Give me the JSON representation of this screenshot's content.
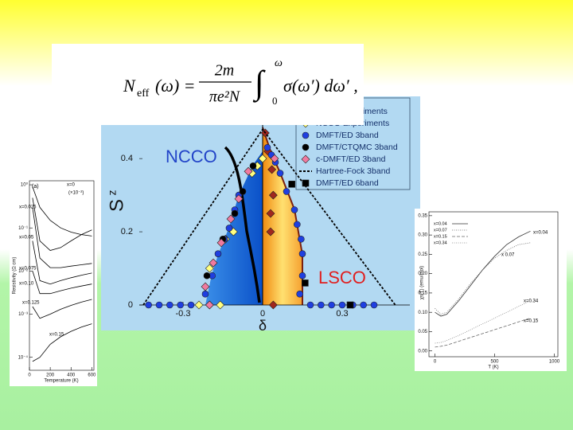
{
  "formula": {
    "lhs": "N",
    "lhs_sub": "eff",
    "lhs_arg": "(ω) =",
    "numerator": "2m",
    "denominator": "πe²N",
    "integral": "∫",
    "lower": "0",
    "upper": "ω",
    "integrand": "σ(ω′) dω′ ,"
  },
  "chart_data": [
    {
      "type": "scatter",
      "xlabel": "δ",
      "ylabel": "S",
      "ylabel_sup": "z",
      "xlim": [
        -0.465,
        0.555
      ],
      "ylim": [
        0,
        0.57
      ],
      "xticks": [
        -0.3,
        0,
        0.3
      ],
      "yticks": [
        0,
        0.2,
        0.4
      ],
      "annotations": [
        "NCCO",
        "LSCO"
      ],
      "legend": "upper right",
      "series": [
        {
          "name": "LSCO Experiments",
          "marker": "diamond",
          "color": "#a0281e",
          "x": [
            0.01,
            0.02,
            0.035,
            0.04,
            0.03,
            0.03,
            0.04
          ],
          "y": [
            0.47,
            0.42,
            0.37,
            0.3,
            0.25,
            0.2,
            0
          ]
        },
        {
          "name": "NCCO Experiments",
          "marker": "diamond",
          "color": "#ffff80",
          "x": [
            -0.04,
            -0.02,
            0,
            -0.11,
            -0.14,
            -0.2,
            -0.24,
            -0.2,
            -0.16
          ],
          "y": [
            0.36,
            0.38,
            0.4,
            0.2,
            0.18,
            0.1,
            0,
            0,
            0
          ]
        },
        {
          "name": "DMFT/ED 3band",
          "marker": "circle",
          "color": "#1f3fe0",
          "x": [
            0.018,
            0.033,
            0.048,
            0.066,
            0.09,
            0.12,
            0.13,
            0.145,
            0.15,
            0.15,
            0.14,
            0.18,
            0.22,
            0.26,
            0.3,
            0.34,
            0.38,
            0.42,
            -0.09,
            -0.105,
            -0.126,
            -0.144,
            -0.168,
            -0.19,
            -0.216,
            -0.43,
            -0.39,
            -0.35,
            -0.31,
            -0.27
          ],
          "y": [
            0.43,
            0.41,
            0.39,
            0.36,
            0.31,
            0.26,
            0.22,
            0.18,
            0.14,
            0.08,
            0.03,
            0,
            0,
            0,
            0,
            0,
            0,
            0,
            0.3,
            0.26,
            0.21,
            0.18,
            0.14,
            0.08,
            0.03,
            0,
            0,
            0,
            0,
            0
          ]
        },
        {
          "name": "DMFT/CTQMC 3band",
          "marker": "circle",
          "color": "#000000",
          "x": [
            -0.036,
            -0.075,
            -0.105,
            -0.15,
            -0.21
          ],
          "y": [
            0.38,
            0.31,
            0.25,
            0.18,
            0.08
          ]
        },
        {
          "name": "c-DMFT/ED 3band",
          "marker": "diamond",
          "color": "#f07aa0",
          "x": [
            -0.054,
            -0.09,
            -0.12,
            -0.156,
            -0.186,
            -0.216,
            -0.2,
            0.045
          ],
          "y": [
            0.365,
            0.29,
            0.235,
            0.17,
            0.115,
            0.05,
            0,
            0.4
          ]
        },
        {
          "name": "Hartree-Fock 3band",
          "marker": "dashed-line",
          "color": "#000000",
          "x": [
            -0.45,
            0,
            0.5
          ],
          "y": [
            0,
            0.48,
            0
          ]
        },
        {
          "name": "DMFT/ED 6band",
          "marker": "square",
          "color": "#000000",
          "x": [
            0.11,
            0.16,
            0.33
          ],
          "y": [
            0.33,
            0.06,
            0
          ]
        }
      ]
    },
    {
      "type": "line",
      "title": "(a)",
      "xlabel": "Temperature (K)",
      "ylabel": "Resistivity  (Ω cm)",
      "ylog": true,
      "xlim": [
        0,
        620
      ],
      "ylim": [
        5e-05,
        1.24
      ],
      "xticks": [
        0,
        200,
        400,
        600
      ],
      "yticks": [
        {
          "value": 1,
          "label": "10⁰"
        },
        {
          "value": 0.1,
          "label": "10⁻¹"
        },
        {
          "value": 0.01,
          "label": "10⁻²"
        },
        {
          "value": 0.001,
          "label": "10⁻³"
        },
        {
          "value": 0.0001,
          "label": "10⁻⁴"
        }
      ],
      "annotations": [
        "(×10⁻²)"
      ],
      "x": [
        30,
        100,
        200,
        300,
        400,
        500,
        600
      ],
      "series": [
        {
          "name": "x=0",
          "color": "#000000",
          "dash": "solid",
          "values": [
            0.9,
            0.3,
            0.15,
            0.1,
            0.08,
            0.07,
            0.065
          ]
        },
        {
          "name": "x=0.025",
          "color": "#000000",
          "dash": "solid",
          "values": [
            0.5,
            0.05,
            0.03,
            0.035,
            0.05,
            0.07,
            0.09
          ]
        },
        {
          "name": "x=0.05",
          "color": "#000000",
          "dash": "solid",
          "values": [
            0.3,
            0.02,
            0.012,
            0.012,
            0.013,
            0.014,
            0.015
          ]
        },
        {
          "name": "x=0.075",
          "color": "#000000",
          "dash": "solid",
          "values": [
            0.05,
            0.006,
            0.005,
            0.006,
            0.007,
            0.008,
            0.009
          ]
        },
        {
          "name": "x=0.10",
          "color": "#000000",
          "dash": "solid",
          "values": [
            0.01,
            0.003,
            0.003,
            0.0035,
            0.004,
            0.0045,
            0.005
          ]
        },
        {
          "name": "x=0.125",
          "color": "#000000",
          "dash": "solid",
          "values": [
            0.0015,
            0.0008,
            0.001,
            0.0013,
            0.0016,
            0.0019,
            0.0022
          ]
        },
        {
          "name": "x=0.15",
          "color": "#000000",
          "dash": "solid",
          "values": [
            8e-05,
            0.0001,
            0.0002,
            0.0003,
            0.0004,
            0.0005,
            0.0006
          ]
        }
      ]
    },
    {
      "type": "line",
      "xlabel": "T (K)",
      "ylabel": "χs(T) (emu/mol)",
      "xlim": [
        -50,
        1030
      ],
      "ylim": [
        -0.015,
        0.36
      ],
      "xticks": [
        0,
        500,
        1000
      ],
      "yticks": [
        {
          "value": 0,
          "label": "0.00"
        },
        0.05,
        {
          "value": 0.1,
          "label": "0.10"
        },
        0.15,
        {
          "value": 0.2,
          "label": "0.20"
        },
        0.25,
        {
          "value": 0.3,
          "label": "0.30"
        },
        0.35
      ],
      "annotations": [
        "x=0.04",
        "x 0.07",
        "x=0.34",
        "x=0.15"
      ],
      "legend": "upper left",
      "x": [
        0,
        50,
        100,
        200,
        300,
        400,
        500,
        600,
        700,
        800
      ],
      "series": [
        {
          "name": "x=0.04",
          "color": "#333333",
          "dash": "solid",
          "values": [
            0.1,
            0.09,
            0.095,
            0.13,
            0.17,
            0.21,
            0.245,
            0.275,
            0.295,
            0.31
          ]
        },
        {
          "name": "x=0.07",
          "color": "#666666",
          "dash": "dotted",
          "values": [
            0.11,
            0.095,
            0.1,
            0.135,
            0.175,
            0.21,
            0.24,
            0.26,
            0.275,
            0.28
          ]
        },
        {
          "name": "x=0.15",
          "color": "#666666",
          "dash": "dashed",
          "values": [
            0.01,
            0.012,
            0.015,
            0.025,
            0.035,
            0.045,
            0.055,
            0.065,
            0.075,
            0.085
          ]
        },
        {
          "name": "x=0.34",
          "color": "#888888",
          "dash": "dotted",
          "values": [
            0.02,
            0.022,
            0.027,
            0.04,
            0.055,
            0.07,
            0.085,
            0.1,
            0.115,
            0.13
          ]
        }
      ]
    }
  ]
}
